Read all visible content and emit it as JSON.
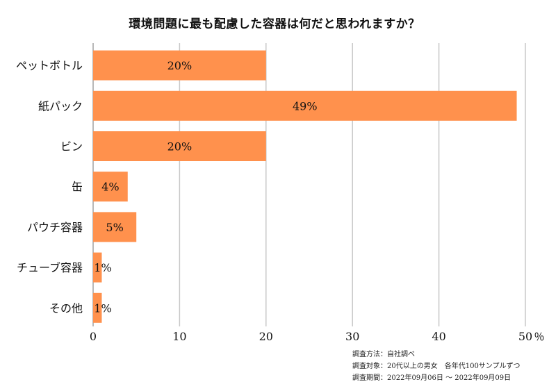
{
  "chart_data": {
    "type": "bar",
    "orientation": "horizontal",
    "title": "環境問題に最も配慮した容器は何だと思われますか？",
    "categories": [
      "ペットボトル",
      "紙パック",
      "ビン",
      "缶",
      "パウチ容器",
      "チューブ容器",
      "その他"
    ],
    "values": [
      20,
      49,
      20,
      4,
      5,
      1,
      1
    ],
    "value_labels": [
      "20%",
      "49%",
      "20%",
      "4%",
      "5%",
      "1%",
      "1%"
    ],
    "xlim": [
      0,
      50
    ],
    "xticks": [
      "0",
      "10",
      "20",
      "30",
      "40",
      "50"
    ],
    "x_unit": "％",
    "grid": true,
    "bar_color": "#FF914D"
  },
  "notes": [
    "調査方法：自社調べ",
    "調査対象：20代以上の男女　各年代100サンプルずつ",
    "調査期間：2022年09月06日 ～ 2022年09月09日"
  ]
}
